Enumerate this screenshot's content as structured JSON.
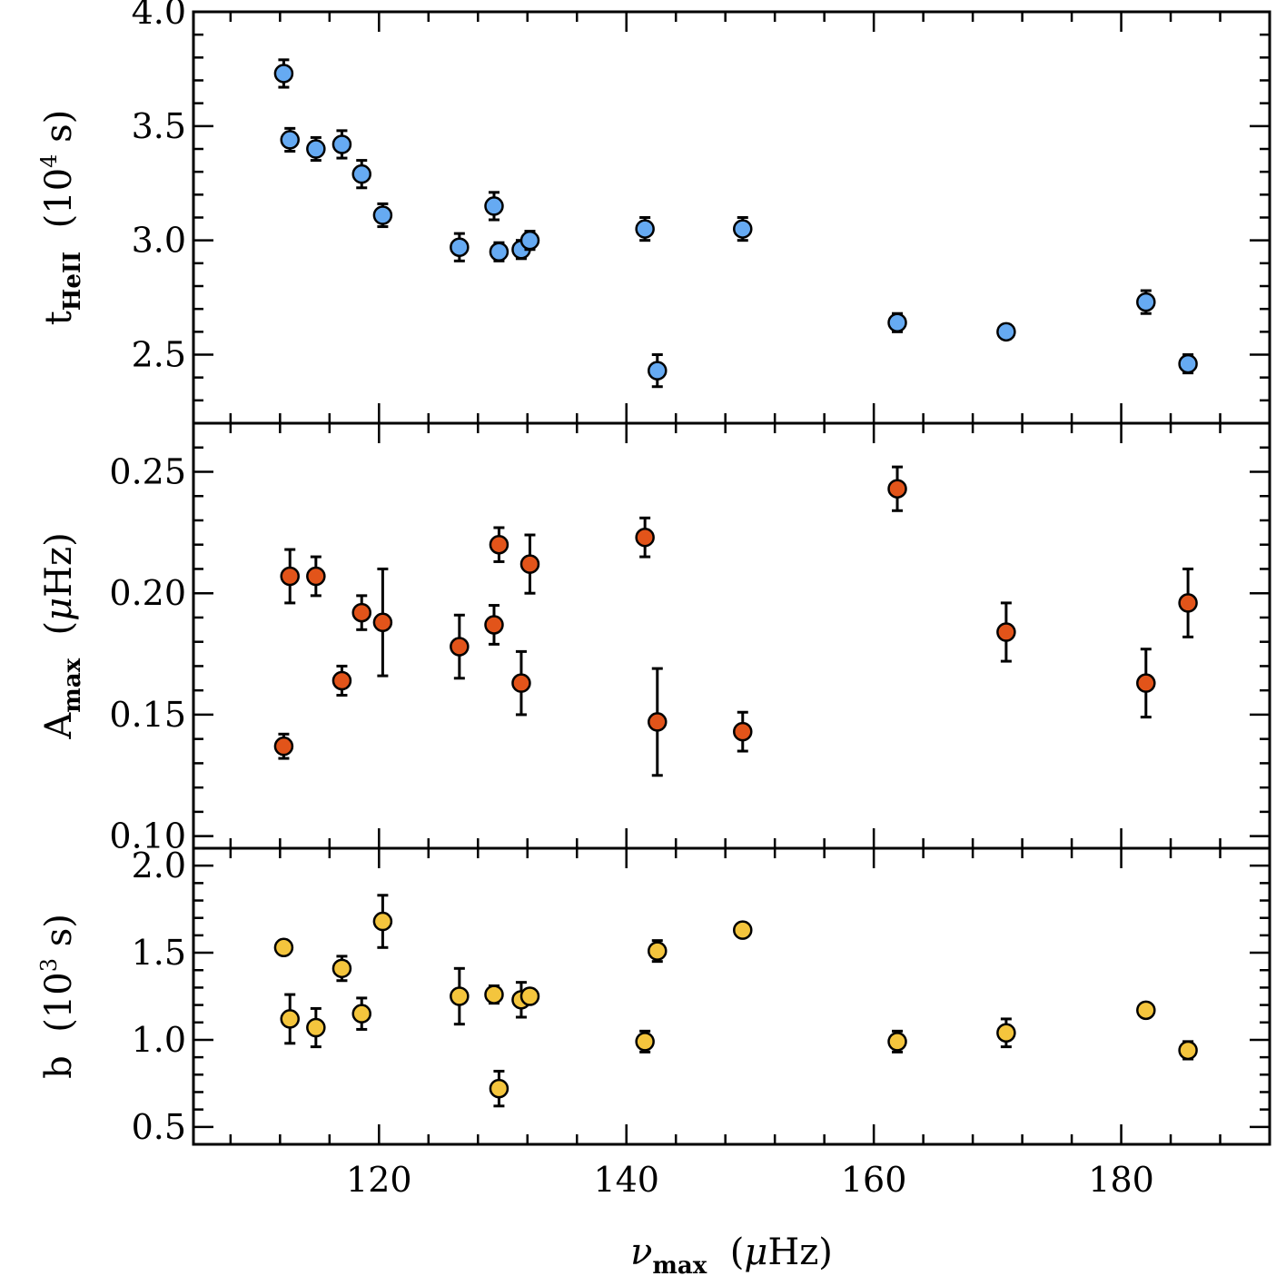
{
  "chart_data": [
    {
      "type": "scatter",
      "panel": "top",
      "ylabel": {
        "main": "t",
        "sub": "HeII",
        "unit_pre": "(10",
        "unit_sup": "4",
        "unit_post": " s)"
      },
      "ylim": [
        2.2,
        4.0
      ],
      "yticks_major": [
        2.5,
        3.0,
        3.5,
        4.0
      ],
      "ytick_labels": [
        "2.5",
        "3.0",
        "3.5",
        "4.0"
      ],
      "color": "#66aaf2",
      "points": [
        {
          "x": 112.3,
          "y": 3.73,
          "err": 0.06
        },
        {
          "x": 112.8,
          "y": 3.44,
          "err": 0.05
        },
        {
          "x": 114.9,
          "y": 3.4,
          "err": 0.05
        },
        {
          "x": 117.0,
          "y": 3.42,
          "err": 0.06
        },
        {
          "x": 118.6,
          "y": 3.29,
          "err": 0.06
        },
        {
          "x": 120.3,
          "y": 3.11,
          "err": 0.05
        },
        {
          "x": 126.5,
          "y": 2.97,
          "err": 0.06
        },
        {
          "x": 129.3,
          "y": 3.15,
          "err": 0.06
        },
        {
          "x": 129.7,
          "y": 2.95,
          "err": 0.04
        },
        {
          "x": 131.5,
          "y": 2.96,
          "err": 0.04
        },
        {
          "x": 132.2,
          "y": 3.0,
          "err": 0.04
        },
        {
          "x": 141.5,
          "y": 3.05,
          "err": 0.05
        },
        {
          "x": 142.5,
          "y": 2.43,
          "err": 0.07
        },
        {
          "x": 149.4,
          "y": 3.05,
          "err": 0.05
        },
        {
          "x": 161.9,
          "y": 2.64,
          "err": 0.04
        },
        {
          "x": 170.7,
          "y": 2.6,
          "err": 0.03
        },
        {
          "x": 182.0,
          "y": 2.73,
          "err": 0.05
        },
        {
          "x": 185.4,
          "y": 2.46,
          "err": 0.04
        }
      ]
    },
    {
      "type": "scatter",
      "panel": "middle",
      "ylabel": {
        "main": "A",
        "sub": "max",
        "unit_pre": "(",
        "unit_mu": "μ",
        "unit_post": "Hz)"
      },
      "ylim": [
        0.095,
        0.27
      ],
      "yticks_major": [
        0.1,
        0.15,
        0.2,
        0.25
      ],
      "ytick_labels": [
        "0.10",
        "0.15",
        "0.20",
        "0.25"
      ],
      "color": "#e2541a",
      "points": [
        {
          "x": 112.3,
          "y": 0.137,
          "err": 0.005
        },
        {
          "x": 112.8,
          "y": 0.207,
          "err": 0.011
        },
        {
          "x": 114.9,
          "y": 0.207,
          "err": 0.008
        },
        {
          "x": 117.0,
          "y": 0.164,
          "err": 0.006
        },
        {
          "x": 118.6,
          "y": 0.192,
          "err": 0.007
        },
        {
          "x": 120.3,
          "y": 0.188,
          "err": 0.022
        },
        {
          "x": 126.5,
          "y": 0.178,
          "err": 0.013
        },
        {
          "x": 129.3,
          "y": 0.187,
          "err": 0.008
        },
        {
          "x": 129.7,
          "y": 0.22,
          "err": 0.007
        },
        {
          "x": 131.5,
          "y": 0.163,
          "err": 0.013
        },
        {
          "x": 132.2,
          "y": 0.212,
          "err": 0.012
        },
        {
          "x": 141.5,
          "y": 0.223,
          "err": 0.008
        },
        {
          "x": 142.5,
          "y": 0.147,
          "err": 0.022
        },
        {
          "x": 149.4,
          "y": 0.143,
          "err": 0.008
        },
        {
          "x": 161.9,
          "y": 0.243,
          "err": 0.009
        },
        {
          "x": 170.7,
          "y": 0.184,
          "err": 0.012
        },
        {
          "x": 182.0,
          "y": 0.163,
          "err": 0.014
        },
        {
          "x": 185.4,
          "y": 0.196,
          "err": 0.014
        }
      ]
    },
    {
      "type": "scatter",
      "panel": "bottom",
      "ylabel": {
        "main": "b",
        "unit_pre": "(10",
        "unit_sup": "3",
        "unit_post": " s)"
      },
      "ylim": [
        0.4,
        2.1
      ],
      "yticks_major": [
        0.5,
        1.0,
        1.5,
        2.0
      ],
      "ytick_labels": [
        "0.5",
        "1.0",
        "1.5",
        "2.0"
      ],
      "xlabel": {
        "main": "ν",
        "sub": "max",
        "unit_pre": "(",
        "unit_mu": "μ",
        "unit_post": "Hz)"
      },
      "xlim": [
        105,
        192
      ],
      "xticks_major": [
        120,
        140,
        160,
        180
      ],
      "xtick_labels": [
        "120",
        "140",
        "160",
        "180"
      ],
      "color": "#f4c53d",
      "points": [
        {
          "x": 112.3,
          "y": 1.53,
          "err": 0.0
        },
        {
          "x": 112.8,
          "y": 1.12,
          "err": 0.14
        },
        {
          "x": 114.9,
          "y": 1.07,
          "err": 0.11
        },
        {
          "x": 117.0,
          "y": 1.41,
          "err": 0.07
        },
        {
          "x": 118.6,
          "y": 1.15,
          "err": 0.09
        },
        {
          "x": 120.3,
          "y": 1.68,
          "err": 0.15
        },
        {
          "x": 126.5,
          "y": 1.25,
          "err": 0.16
        },
        {
          "x": 129.3,
          "y": 1.26,
          "err": 0.05
        },
        {
          "x": 129.7,
          "y": 0.72,
          "err": 0.1
        },
        {
          "x": 131.5,
          "y": 1.23,
          "err": 0.1
        },
        {
          "x": 132.2,
          "y": 1.25,
          "err": 0.04
        },
        {
          "x": 141.5,
          "y": 0.99,
          "err": 0.06
        },
        {
          "x": 142.5,
          "y": 1.51,
          "err": 0.06
        },
        {
          "x": 149.4,
          "y": 1.63,
          "err": 0.0
        },
        {
          "x": 161.9,
          "y": 0.99,
          "err": 0.06
        },
        {
          "x": 170.7,
          "y": 1.04,
          "err": 0.08
        },
        {
          "x": 182.0,
          "y": 1.17,
          "err": 0.03
        },
        {
          "x": 185.4,
          "y": 0.94,
          "err": 0.05
        }
      ]
    }
  ]
}
